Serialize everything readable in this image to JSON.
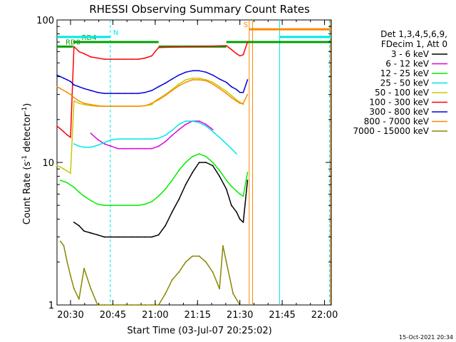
{
  "chart_data": {
    "type": "line",
    "title": "RHESSI Observing Summary Count Rates",
    "xlabel": "Start Time (03-Jul-07 20:25:02)",
    "ylabel_main": "Count Rate (s",
    "ylabel_sup1": "-1",
    "ylabel_mid": " detector",
    "ylabel_sup2": "-1",
    "ylabel_end": ")",
    "y_scale": "log",
    "ylim": [
      1,
      100
    ],
    "xlim_minutes": [
      20.42,
      22.04
    ],
    "x_ticks": [
      {
        "label": "20:30",
        "value": 20.5
      },
      {
        "label": "20:45",
        "value": 20.75
      },
      {
        "label": "21:00",
        "value": 21.0
      },
      {
        "label": "21:15",
        "value": 21.25
      },
      {
        "label": "21:30",
        "value": 21.5
      },
      {
        "label": "21:45",
        "value": 21.75
      },
      {
        "label": "22:00",
        "value": 22.0
      }
    ],
    "y_ticks": [
      {
        "label": "1",
        "value": 1
      },
      {
        "label": "10",
        "value": 10
      },
      {
        "label": "100",
        "value": 100
      }
    ],
    "legend_header": [
      "Det 1,3,4,5,6,9,",
      "FDecim 1, Att 0"
    ],
    "legend_position": "right",
    "series": [
      {
        "name": "3 - 6 keV",
        "color": "#000000",
        "x": [
          20.52,
          20.55,
          20.58,
          20.62,
          20.66,
          20.7,
          20.74,
          20.78,
          20.82,
          20.86,
          20.9,
          20.94,
          20.98,
          21.02,
          21.06,
          21.1,
          21.14,
          21.18,
          21.22,
          21.26,
          21.3,
          21.34,
          21.38,
          21.42,
          21.45,
          21.48,
          21.5,
          21.52,
          21.545
        ],
        "y": [
          3.8,
          3.6,
          3.3,
          3.2,
          3.1,
          3.0,
          3.0,
          3.0,
          3.0,
          3.0,
          3.0,
          3.0,
          3.0,
          3.1,
          3.6,
          4.5,
          5.5,
          7.0,
          8.5,
          10.0,
          10.0,
          9.5,
          8.0,
          6.5,
          5.0,
          4.5,
          4.0,
          3.8,
          7.5
        ]
      },
      {
        "name": "6 - 12 keV",
        "color": "#e000e0",
        "x": [
          20.62,
          20.66,
          20.7,
          20.74,
          20.78,
          20.82,
          20.86,
          20.9,
          20.94,
          20.98,
          21.02,
          21.06,
          21.1,
          21.14,
          21.18,
          21.22,
          21.26,
          21.3,
          21.34
        ],
        "y": [
          16,
          14.5,
          13.5,
          13,
          12.5,
          12.5,
          12.5,
          12.5,
          12.5,
          12.5,
          13,
          14,
          15.5,
          17,
          18.5,
          19.5,
          19.5,
          18.5,
          17
        ]
      },
      {
        "name": "12 - 25 keV",
        "color": "#00ee00",
        "x": [
          20.44,
          20.48,
          20.52,
          20.55,
          20.58,
          20.62,
          20.66,
          20.7,
          20.74,
          20.78,
          20.82,
          20.86,
          20.9,
          20.94,
          20.98,
          21.02,
          21.06,
          21.1,
          21.14,
          21.18,
          21.22,
          21.26,
          21.3,
          21.34,
          21.38,
          21.42,
          21.45,
          21.48,
          21.5,
          21.52,
          21.545
        ],
        "y": [
          7.5,
          7.2,
          6.7,
          6.2,
          5.8,
          5.4,
          5.1,
          5.0,
          5.0,
          5.0,
          5.0,
          5.0,
          5.0,
          5.1,
          5.3,
          5.8,
          6.5,
          7.5,
          8.8,
          10.0,
          11.0,
          11.5,
          11.0,
          10.0,
          8.8,
          7.5,
          6.8,
          6.3,
          6.0,
          5.8,
          8.5
        ]
      },
      {
        "name": "25 - 50 keV",
        "color": "#00e8e8",
        "x": [
          20.52,
          20.55,
          20.58,
          20.62,
          20.66,
          20.7,
          20.74,
          20.78,
          20.82,
          20.86,
          20.9,
          20.94,
          20.98,
          21.02,
          21.06,
          21.1,
          21.14,
          21.18,
          21.22,
          21.26,
          21.3,
          21.34,
          21.38,
          21.42,
          21.45,
          21.48
        ],
        "y": [
          13.5,
          13,
          12.8,
          12.8,
          13.2,
          13.8,
          14.4,
          14.6,
          14.6,
          14.6,
          14.6,
          14.6,
          14.6,
          14.8,
          15.5,
          16.8,
          18.5,
          19.5,
          19.5,
          19.0,
          18.0,
          16.5,
          15.0,
          13.5,
          12.5,
          11.5
        ]
      },
      {
        "name": "50 - 100 keV",
        "color": "#c8c800",
        "x": [
          20.42,
          20.44,
          20.46,
          20.48,
          20.5,
          20.52,
          20.55,
          20.58,
          20.62,
          20.66,
          20.7,
          20.74,
          20.78,
          20.82,
          20.86,
          20.9,
          20.94,
          20.98,
          21.0,
          21.02,
          21.06,
          21.1,
          21.14,
          21.18,
          21.22,
          21.26,
          21.3,
          21.34,
          21.38,
          21.42,
          21.45,
          21.48,
          21.5,
          21.52
        ],
        "y": [
          9.5,
          9.3,
          9.0,
          8.7,
          8.4,
          27,
          26,
          25.5,
          25,
          24.8,
          24.8,
          24.8,
          24.8,
          24.8,
          24.8,
          24.8,
          25,
          25.5,
          27,
          28,
          30,
          32.5,
          35.5,
          38,
          39,
          39,
          38,
          36.5,
          34,
          31.5,
          29.5,
          27.5,
          26.5,
          25.5
        ]
      },
      {
        "name": "100 - 300 keV",
        "color": "#ff0000",
        "x": [
          20.42,
          20.44,
          20.46,
          20.48,
          20.5,
          20.52,
          20.55,
          20.58,
          20.62,
          20.66,
          20.7,
          20.74,
          20.78,
          20.82,
          20.86,
          20.9,
          20.94,
          20.98,
          21.0,
          21.02,
          21.42,
          21.45,
          21.48,
          21.5,
          21.52,
          21.545
        ],
        "y": [
          18,
          17.2,
          16.4,
          15.6,
          15,
          65,
          60,
          58,
          55,
          54,
          53,
          53,
          53,
          53,
          53,
          53,
          54,
          56,
          60,
          64,
          66,
          62,
          58,
          56,
          57,
          70
        ]
      },
      {
        "name": "300 - 800 keV",
        "color": "#0000dd",
        "x": [
          20.42,
          20.44,
          20.46,
          20.48,
          20.5,
          20.52,
          20.55,
          20.58,
          20.62,
          20.66,
          20.7,
          20.74,
          20.78,
          20.82,
          20.86,
          20.9,
          20.94,
          20.98,
          21.02,
          21.06,
          21.1,
          21.14,
          21.18,
          21.22,
          21.26,
          21.3,
          21.34,
          21.38,
          21.42,
          21.45,
          21.48,
          21.5,
          21.52,
          21.545
        ],
        "y": [
          41,
          40,
          39,
          38,
          37,
          35,
          34,
          33,
          32,
          31,
          30.5,
          30.5,
          30.5,
          30.5,
          30.5,
          30.5,
          31,
          32,
          34,
          36,
          38.5,
          41,
          43,
          44,
          44,
          43,
          41,
          38.5,
          36.5,
          34,
          32.5,
          31,
          31,
          38
        ]
      },
      {
        "name": "800 - 7000 keV",
        "color": "#ff8800",
        "x": [
          20.42,
          20.44,
          20.46,
          20.48,
          20.5,
          20.52,
          20.55,
          20.58,
          20.62,
          20.66,
          20.7,
          20.74,
          20.78,
          20.82,
          20.86,
          20.9,
          20.94,
          20.98,
          21.02,
          21.06,
          21.1,
          21.14,
          21.18,
          21.22,
          21.26,
          21.3,
          21.34,
          21.38,
          21.42,
          21.45,
          21.48,
          21.5,
          21.52,
          21.545
        ],
        "y": [
          34,
          33,
          32,
          31,
          30,
          28.5,
          27,
          26,
          25.5,
          25,
          24.8,
          24.8,
          24.8,
          24.8,
          24.8,
          24.8,
          25,
          26,
          27.5,
          29.5,
          32,
          34.5,
          36.5,
          38,
          38,
          37.5,
          35.5,
          33,
          30.5,
          28.5,
          27,
          26,
          26,
          30
        ]
      },
      {
        "name": "7000 - 15000 keV",
        "color": "#888800",
        "x": [
          20.44,
          20.46,
          20.48,
          20.5,
          20.52,
          20.55,
          20.58,
          20.62,
          20.66,
          20.7,
          20.74,
          20.78,
          20.82,
          20.86,
          20.9,
          20.94,
          20.98,
          21.02,
          21.06,
          21.1,
          21.14,
          21.18,
          21.22,
          21.26,
          21.3,
          21.34,
          21.38,
          21.4,
          21.42,
          21.46,
          21.5
        ],
        "y": [
          2.8,
          2.6,
          2.0,
          1.6,
          1.3,
          1.1,
          1.8,
          1.3,
          1.0,
          1.0,
          1.0,
          1.0,
          1.0,
          1.0,
          1.0,
          1.0,
          1.0,
          1.0,
          1.2,
          1.5,
          1.7,
          2.0,
          2.2,
          2.2,
          2.0,
          1.7,
          1.3,
          2.6,
          2.0,
          1.2,
          1.0
        ]
      }
    ],
    "status_bars": [
      {
        "label": "RD0",
        "color": "#00a000",
        "x1": 20.42,
        "x2": 20.515,
        "value": 65
      },
      {
        "label": "RD4",
        "color": "#00a000",
        "x1": 20.515,
        "x2": 21.02,
        "value": 70
      },
      {
        "label": "",
        "color": "#00a000",
        "x1": 21.02,
        "x2": 21.42,
        "value": 65
      },
      {
        "label": "",
        "color": "#00a000",
        "x1": 21.42,
        "x2": 22.04,
        "value": 70
      },
      {
        "label": "N",
        "color": "#00e8e8",
        "x1": 20.42,
        "x2": 20.735,
        "value": 76
      },
      {
        "label": "",
        "color": "#00e8e8",
        "x1": 21.735,
        "x2": 22.04,
        "value": 76
      },
      {
        "label": "S",
        "color": "#ff8800",
        "x1": 21.555,
        "x2": 22.04,
        "value": 86
      }
    ],
    "vertical_markers": [
      {
        "x": 20.735,
        "color": "#00e8e8",
        "dashed": true
      },
      {
        "x": 21.555,
        "color": "#ff8800",
        "dashed": false
      },
      {
        "x": 21.575,
        "color": "#ff8800",
        "dashed": false
      },
      {
        "x": 21.735,
        "color": "#00e8e8",
        "dashed": false
      },
      {
        "x": 22.03,
        "color": "#00e8e8",
        "dashed": true
      },
      {
        "x": 22.035,
        "color": "#ff8800",
        "dashed": false
      }
    ],
    "grid": false
  },
  "footer_date": "15-Oct-2021 20:34"
}
